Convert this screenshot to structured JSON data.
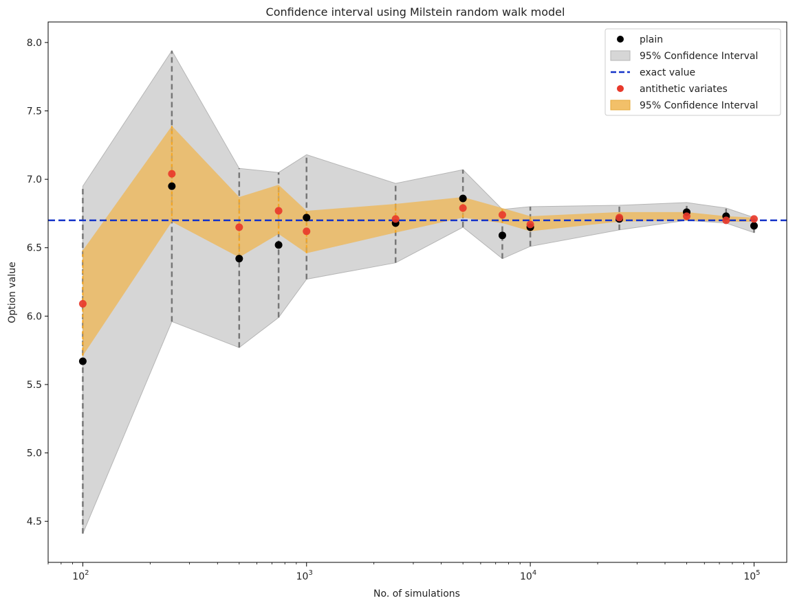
{
  "chart_data": {
    "type": "scatter",
    "title": "Confidence interval using Milstein random walk model",
    "xlabel": "No. of simulations",
    "ylabel": "Option value",
    "xscale": "log",
    "xlim": [
      70,
      140000
    ],
    "ylim": [
      4.2,
      8.15
    ],
    "grid": false,
    "legend_position": "top-right",
    "x": [
      100,
      250,
      500,
      750,
      1000,
      2500,
      5000,
      7500,
      10000,
      25000,
      50000,
      75000,
      100000
    ],
    "x_ticks": [
      {
        "value": 100,
        "base": "10",
        "exp": "2"
      },
      {
        "value": 1000,
        "base": "10",
        "exp": "3"
      },
      {
        "value": 10000,
        "base": "10",
        "exp": "4"
      },
      {
        "value": 100000,
        "base": "10",
        "exp": "5"
      }
    ],
    "y_ticks": [
      "4.5",
      "5.0",
      "5.5",
      "6.0",
      "6.5",
      "7.0",
      "7.5",
      "8.0"
    ],
    "exact_value": 6.7,
    "series": [
      {
        "name": "plain",
        "color": "#000000",
        "values": [
          5.67,
          6.95,
          6.42,
          6.52,
          6.72,
          6.68,
          6.86,
          6.59,
          6.65,
          6.71,
          6.76,
          6.73,
          6.66
        ],
        "ci_low": [
          4.41,
          5.96,
          5.77,
          5.99,
          6.27,
          6.39,
          6.65,
          6.42,
          6.51,
          6.63,
          6.7,
          6.68,
          6.61
        ],
        "ci_high": [
          6.95,
          7.94,
          7.08,
          7.05,
          7.18,
          6.97,
          7.07,
          6.78,
          6.8,
          6.81,
          6.83,
          6.79,
          6.72
        ]
      },
      {
        "name": "antithetic variates",
        "color": "#e8392b",
        "values": [
          6.09,
          7.04,
          6.65,
          6.77,
          6.62,
          6.71,
          6.79,
          6.74,
          6.67,
          6.72,
          6.73,
          6.7,
          6.71
        ],
        "ci_low": [
          5.71,
          6.69,
          6.43,
          6.6,
          6.46,
          6.61,
          6.72,
          6.68,
          6.62,
          6.69,
          6.7,
          6.69,
          6.69
        ],
        "ci_high": [
          6.48,
          7.39,
          6.87,
          6.96,
          6.77,
          6.82,
          6.87,
          6.79,
          6.73,
          6.76,
          6.76,
          6.73,
          6.72
        ]
      }
    ],
    "legend": [
      {
        "label": "plain",
        "kind": "dot",
        "color": "#000000"
      },
      {
        "label": "95% Confidence Interval",
        "kind": "patch",
        "color": "#d6d6d6",
        "edge": "#b5b5b5"
      },
      {
        "label": "exact value",
        "kind": "dashed-line",
        "color": "#1433c8"
      },
      {
        "label": "antithetic variates",
        "kind": "dot",
        "color": "#e8392b"
      },
      {
        "label": "95% Confidence Interval",
        "kind": "patch",
        "color": "#f2c069",
        "edge": "#e6a93a"
      }
    ],
    "colors": {
      "plain_band": "#d6d6d6",
      "plain_band_edge": "#b5b5b5",
      "plain_errorbar": "#777777",
      "anti_band": "#f0b44c",
      "anti_errorbar": "#f5a623",
      "exact_line": "#1433c8"
    }
  }
}
